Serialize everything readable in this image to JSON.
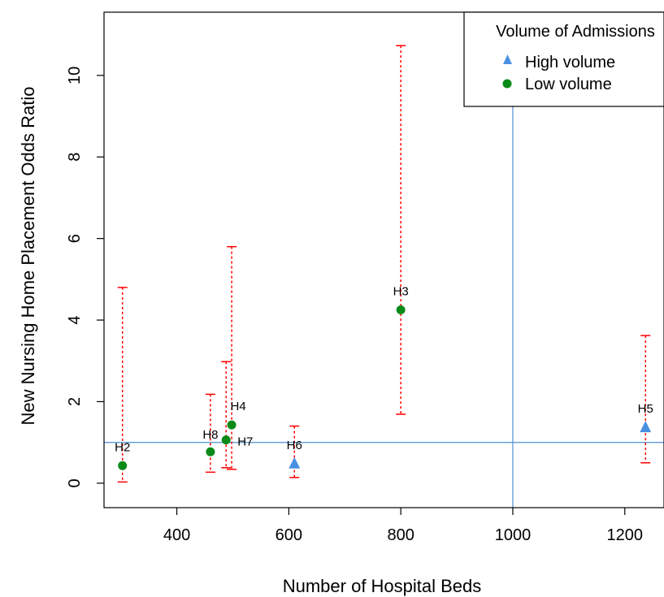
{
  "chart_data": {
    "type": "scatter",
    "title": "",
    "xlabel": "Number of Hospital Beds",
    "ylabel": "New Nursing Home Placement Odds Ratio",
    "xlim": [
      270,
      1270
    ],
    "ylim": [
      -0.6,
      11.55
    ],
    "x_ticks": [
      400,
      600,
      800,
      1000,
      1200
    ],
    "y_ticks": [
      0,
      2,
      4,
      6,
      8,
      10
    ],
    "grid": false,
    "legend_position": "top-right",
    "legend_title": "Volume of Admissions",
    "reference_lines": {
      "h": 1,
      "v": 1000,
      "color": "#5b9bd5"
    },
    "error_bar_color": "#ff0000",
    "series": [
      {
        "name": "High volume",
        "marker": "triangle",
        "color": "#4a90e2",
        "points": [
          {
            "label": "H6",
            "x": 610,
            "y": 0.48,
            "lo": 0.14,
            "hi": 1.4
          },
          {
            "label": "H5",
            "x": 1237,
            "y": 1.37,
            "lo": 0.5,
            "hi": 3.62
          }
        ]
      },
      {
        "name": "Low volume",
        "marker": "circle",
        "color": "#0a8a18",
        "points": [
          {
            "label": "H2",
            "x": 303,
            "y": 0.43,
            "lo": 0.03,
            "hi": 4.8
          },
          {
            "label": "H8",
            "x": 460,
            "y": 0.77,
            "lo": 0.27,
            "hi": 2.18
          },
          {
            "label": "H7",
            "x": 488,
            "y": 1.06,
            "lo": 0.38,
            "hi": 2.98
          },
          {
            "label": "H4",
            "x": 498,
            "y": 1.43,
            "lo": 0.34,
            "hi": 5.8
          },
          {
            "label": "H3",
            "x": 800,
            "y": 4.25,
            "lo": 1.69,
            "hi": 10.73
          }
        ]
      }
    ]
  }
}
